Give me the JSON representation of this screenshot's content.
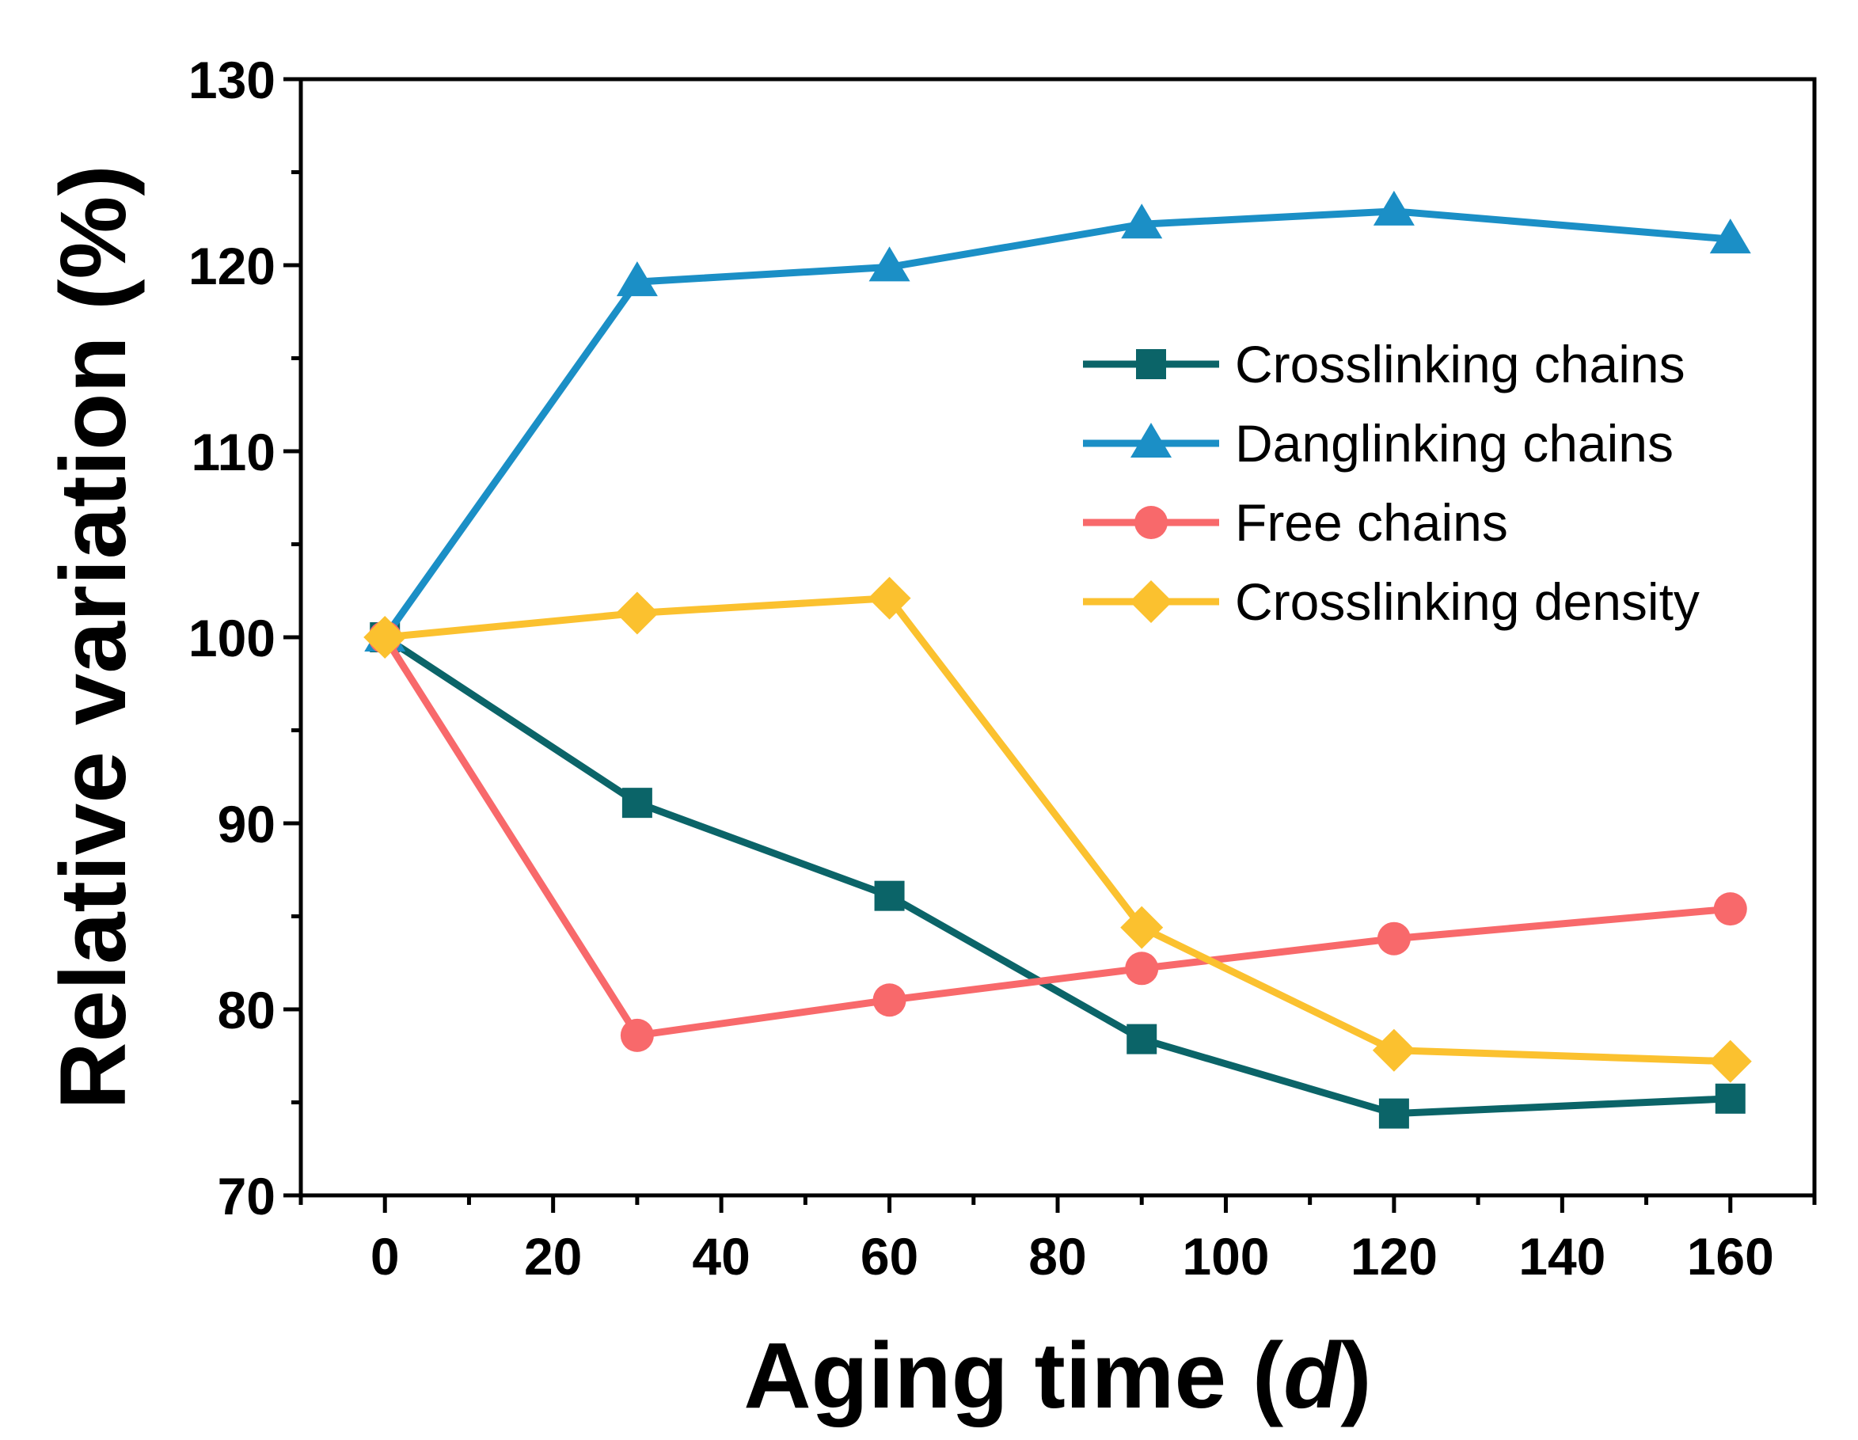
{
  "chart_data": {
    "type": "line",
    "title": "",
    "xlabel": "Aging time",
    "xlabel_unit": "d",
    "ylabel": "Relative variation (%)",
    "xlim": [
      -10,
      170
    ],
    "ylim": [
      70,
      130
    ],
    "xticks": [
      0,
      20,
      40,
      60,
      80,
      100,
      120,
      140,
      160
    ],
    "yticks": [
      70,
      80,
      90,
      100,
      110,
      120,
      130
    ],
    "grid": false,
    "legend_position": "right",
    "x": [
      0,
      30,
      60,
      90,
      120,
      160
    ],
    "series": [
      {
        "name": "Crosslinking chains",
        "marker": "square",
        "color": "#0b6468",
        "values": [
          100,
          91.1,
          86.1,
          78.4,
          74.4,
          75.2
        ]
      },
      {
        "name": "Danglinking chains",
        "marker": "triangle",
        "color": "#1b8fc6",
        "values": [
          100,
          119.1,
          119.9,
          122.2,
          122.9,
          121.4
        ]
      },
      {
        "name": "Free chains",
        "marker": "circle",
        "color": "#f8696b",
        "values": [
          100,
          78.6,
          80.5,
          82.2,
          83.8,
          85.4
        ]
      },
      {
        "name": "Crosslinking density",
        "marker": "diamond",
        "color": "#fbc12f",
        "values": [
          100,
          101.3,
          102.1,
          84.4,
          77.8,
          77.2
        ]
      }
    ]
  }
}
